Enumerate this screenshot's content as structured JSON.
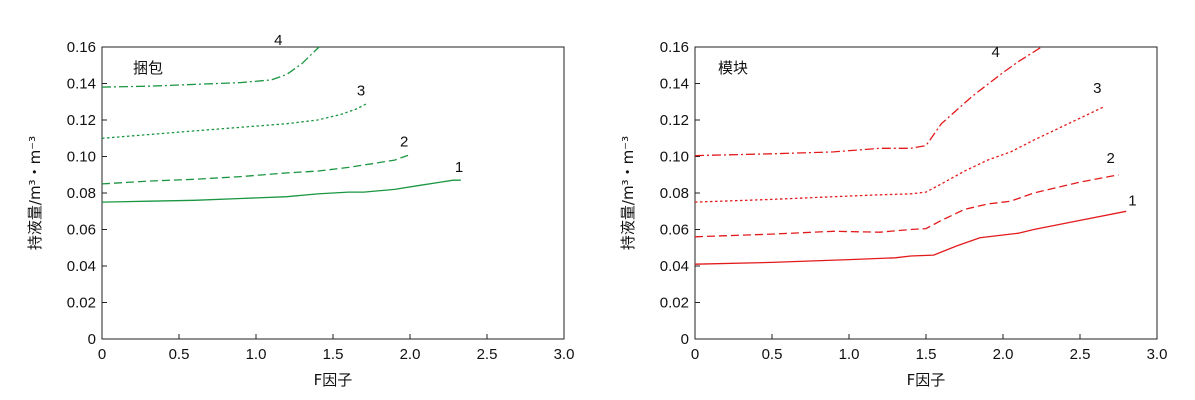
{
  "chart_data": [
    {
      "type": "line",
      "title": "捆包",
      "xlabel": "F因子",
      "ylabel": "持液量/m³・m⁻³",
      "xlim": [
        0,
        3.0
      ],
      "ylim": [
        0,
        0.16
      ],
      "xticks": [
        "0",
        "0.5",
        "1.0",
        "1.5",
        "2.0",
        "2.5",
        "3.0"
      ],
      "yticks": [
        "0",
        "0.02",
        "0.04",
        "0.06",
        "0.08",
        "0.10",
        "0.12",
        "0.14",
        "0.16"
      ],
      "grid": false,
      "color": "#1a9641",
      "series": [
        {
          "name": "1",
          "dash": "solid",
          "x": [
            0,
            0.3,
            0.6,
            0.9,
            1.2,
            1.4,
            1.6,
            1.7,
            1.9,
            2.05,
            2.2,
            2.28,
            2.33
          ],
          "y": [
            0.075,
            0.0755,
            0.076,
            0.077,
            0.078,
            0.0795,
            0.0805,
            0.0805,
            0.082,
            0.084,
            0.086,
            0.087,
            0.087
          ]
        },
        {
          "name": "2",
          "dash": "dashed",
          "x": [
            0,
            0.3,
            0.6,
            0.9,
            1.2,
            1.4,
            1.6,
            1.75,
            1.9,
            2.0
          ],
          "y": [
            0.085,
            0.0865,
            0.0875,
            0.089,
            0.091,
            0.092,
            0.094,
            0.096,
            0.098,
            0.101
          ]
        },
        {
          "name": "3",
          "dash": "dotted",
          "x": [
            0,
            0.3,
            0.6,
            0.9,
            1.2,
            1.4,
            1.55,
            1.65,
            1.72
          ],
          "y": [
            0.11,
            0.112,
            0.114,
            0.116,
            0.118,
            0.12,
            0.123,
            0.126,
            0.129
          ]
        },
        {
          "name": "4",
          "dash": "dashdot",
          "x": [
            0,
            0.3,
            0.6,
            0.9,
            1.1,
            1.2,
            1.3,
            1.36,
            1.41
          ],
          "y": [
            0.138,
            0.1385,
            0.1395,
            0.1405,
            0.142,
            0.145,
            0.151,
            0.156,
            0.161
          ]
        }
      ]
    },
    {
      "type": "line",
      "title": "模块",
      "xlabel": "F因子",
      "ylabel": "持液量/m³・m⁻³",
      "xlim": [
        0,
        3.0
      ],
      "ylim": [
        0,
        0.16
      ],
      "xticks": [
        "0",
        "0.5",
        "1.0",
        "1.5",
        "2.0",
        "2.5",
        "3.0"
      ],
      "yticks": [
        "0",
        "0.02",
        "0.04",
        "0.06",
        "0.08",
        "0.10",
        "0.12",
        "0.14",
        "0.16"
      ],
      "grid": false,
      "color": "#e31a1c",
      "series": [
        {
          "name": "1",
          "dash": "solid",
          "x": [
            0,
            0.5,
            1.0,
            1.3,
            1.4,
            1.55,
            1.7,
            1.85,
            2.0,
            2.1,
            2.2,
            2.5,
            2.8
          ],
          "y": [
            0.041,
            0.042,
            0.0435,
            0.0445,
            0.0455,
            0.046,
            0.051,
            0.0555,
            0.057,
            0.058,
            0.06,
            0.065,
            0.07
          ]
        },
        {
          "name": "2",
          "dash": "dashed",
          "x": [
            0,
            0.5,
            0.9,
            1.2,
            1.4,
            1.5,
            1.6,
            1.75,
            1.9,
            2.05,
            2.2,
            2.5,
            2.75
          ],
          "y": [
            0.056,
            0.0575,
            0.059,
            0.0585,
            0.06,
            0.0605,
            0.065,
            0.071,
            0.074,
            0.0755,
            0.08,
            0.086,
            0.09
          ]
        },
        {
          "name": "3",
          "dash": "dotted",
          "x": [
            0,
            0.5,
            0.9,
            1.2,
            1.4,
            1.5,
            1.6,
            1.75,
            1.9,
            2.05,
            2.2,
            2.45,
            2.65
          ],
          "y": [
            0.075,
            0.0765,
            0.078,
            0.079,
            0.0795,
            0.0805,
            0.085,
            0.092,
            0.098,
            0.1025,
            0.109,
            0.119,
            0.127
          ]
        },
        {
          "name": "4",
          "dash": "dashdot",
          "x": [
            0,
            0.5,
            0.9,
            1.2,
            1.4,
            1.5,
            1.6,
            1.8,
            2.0,
            2.1,
            2.25
          ],
          "y": [
            0.1005,
            0.1015,
            0.1025,
            0.1045,
            0.1045,
            0.106,
            0.118,
            0.133,
            0.146,
            0.152,
            0.16
          ]
        }
      ]
    }
  ]
}
